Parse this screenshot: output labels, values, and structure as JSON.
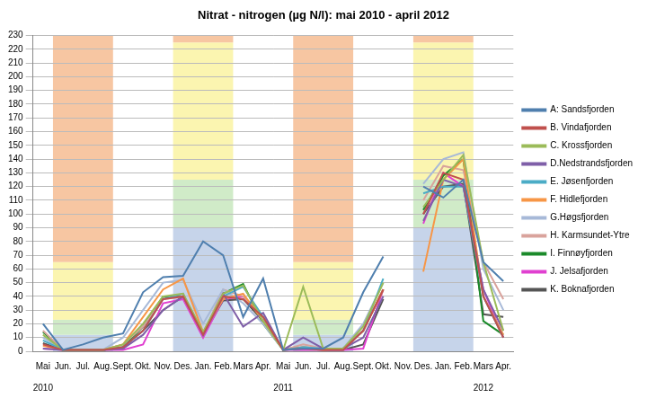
{
  "chart_data": {
    "type": "line",
    "title": "Nitrat - nitrogen (µg N/l): mai 2010 - april 2012",
    "categories": [
      "Mai",
      "Jun.",
      "Jul.",
      "Aug.",
      "Sept.",
      "Okt.",
      "Nov.",
      "Des.",
      "Jan.",
      "Feb.",
      "Mars",
      "Apr.",
      "Mai",
      "Jun.",
      "Jul.",
      "Aug.",
      "Sept.",
      "Okt.",
      "Nov.",
      "Des.",
      "Jan.",
      "Feb.",
      "Mars",
      "Apr."
    ],
    "annotations": [
      {
        "x_index": 0,
        "text": "2010"
      },
      {
        "x_index": 12,
        "text": "2011"
      },
      {
        "x_index": 22,
        "text": "2012"
      }
    ],
    "series": [
      {
        "name": "A: Sandsfjorden",
        "color": "#4f7fae",
        "values": [
          20,
          1,
          5,
          10,
          13,
          43,
          54,
          55,
          80,
          70,
          25,
          53,
          1,
          2,
          2,
          10,
          43,
          69,
          null,
          120,
          112,
          125,
          65,
          51
        ]
      },
      {
        "name": "B. Vindafjorden",
        "color": "#c0504d",
        "values": [
          5,
          1,
          1,
          1,
          3,
          15,
          38,
          40,
          12,
          40,
          38,
          25,
          1,
          2,
          1,
          1,
          15,
          45,
          null,
          100,
          130,
          125,
          40,
          10
        ]
      },
      {
        "name": "C. Krossfjorden",
        "color": "#9bbb59",
        "values": [
          12,
          1,
          1,
          1,
          5,
          20,
          40,
          42,
          14,
          42,
          48,
          22,
          1,
          47,
          2,
          2,
          18,
          50,
          null,
          105,
          125,
          143,
          65,
          15
        ]
      },
      {
        "name": "D.Nedstrandsfjorden",
        "color": "#7f5fa8",
        "values": [
          2,
          1,
          1,
          1,
          2,
          12,
          30,
          40,
          12,
          42,
          18,
          28,
          1,
          10,
          2,
          2,
          10,
          40,
          null,
          95,
          125,
          120,
          45,
          15
        ]
      },
      {
        "name": "E. Jøsenfjorden",
        "color": "#4bacc6",
        "values": [
          8,
          1,
          1,
          1,
          3,
          15,
          38,
          42,
          12,
          40,
          47,
          25,
          1,
          3,
          2,
          2,
          15,
          53,
          null,
          115,
          120,
          120,
          40,
          10
        ]
      },
      {
        "name": "F. Hidlefjorden",
        "color": "#f79646",
        "values": [
          4,
          1,
          1,
          1,
          5,
          25,
          45,
          53,
          14,
          38,
          42,
          22,
          1,
          3,
          1,
          2,
          15,
          45,
          null,
          58,
          125,
          140,
          40,
          12
        ]
      },
      {
        "name": "G.Høgsfjorden",
        "color": "#a7b9d8",
        "values": [
          10,
          1,
          1,
          1,
          10,
          30,
          50,
          52,
          20,
          45,
          35,
          20,
          1,
          3,
          2,
          2,
          20,
          50,
          null,
          122,
          140,
          145,
          60,
          30
        ]
      },
      {
        "name": "H. Karmsundet-Ytre",
        "color": "#d9a39c",
        "values": [
          15,
          1,
          1,
          1,
          5,
          18,
          38,
          40,
          12,
          45,
          40,
          25,
          1,
          5,
          2,
          2,
          15,
          45,
          null,
          110,
          135,
          132,
          65,
          38
        ]
      },
      {
        "name": "I. Finnøyfjorden",
        "color": "#1b8a2a",
        "values": [
          14,
          1,
          1,
          1,
          3,
          18,
          40,
          40,
          13,
          42,
          49,
          20,
          1,
          3,
          2,
          2,
          15,
          45,
          null,
          103,
          128,
          140,
          22,
          12
        ]
      },
      {
        "name": "J. Jelsafjorden",
        "color": "#e040d0",
        "values": [
          2,
          1,
          1,
          1,
          1,
          5,
          35,
          38,
          10,
          38,
          40,
          25,
          1,
          1,
          1,
          1,
          2,
          45,
          null,
          93,
          130,
          120,
          45,
          10
        ]
      },
      {
        "name": "K. Boknafjorden",
        "color": "#555555",
        "values": [
          6,
          1,
          1,
          1,
          3,
          15,
          30,
          40,
          12,
          37,
          38,
          22,
          1,
          2,
          1,
          1,
          5,
          38,
          null,
          100,
          120,
          122,
          27,
          25
        ]
      }
    ],
    "bands": [
      {
        "start": 1,
        "end": 3,
        "levels": [
          {
            "from": 0,
            "to": 12,
            "color": "#c6d4ea"
          },
          {
            "from": 12,
            "to": 23,
            "color": "#d0ebc8"
          },
          {
            "from": 23,
            "to": 65,
            "color": "#fbf5b0"
          },
          {
            "from": 65,
            "to": 230,
            "color": "#f7c6a2"
          }
        ]
      },
      {
        "start": 7,
        "end": 9,
        "levels": [
          {
            "from": 0,
            "to": 90,
            "color": "#c6d4ea"
          },
          {
            "from": 90,
            "to": 125,
            "color": "#d0ebc8"
          },
          {
            "from": 125,
            "to": 225,
            "color": "#fbf5b0"
          },
          {
            "from": 225,
            "to": 230,
            "color": "#f7c6a2"
          }
        ]
      },
      {
        "start": 13,
        "end": 15,
        "levels": [
          {
            "from": 0,
            "to": 12,
            "color": "#c6d4ea"
          },
          {
            "from": 12,
            "to": 23,
            "color": "#d0ebc8"
          },
          {
            "from": 23,
            "to": 65,
            "color": "#fbf5b0"
          },
          {
            "from": 65,
            "to": 230,
            "color": "#f7c6a2"
          }
        ]
      },
      {
        "start": 19,
        "end": 21,
        "levels": [
          {
            "from": 0,
            "to": 90,
            "color": "#c6d4ea"
          },
          {
            "from": 90,
            "to": 125,
            "color": "#d0ebc8"
          },
          {
            "from": 125,
            "to": 225,
            "color": "#fbf5b0"
          },
          {
            "from": 225,
            "to": 230,
            "color": "#f7c6a2"
          }
        ]
      }
    ],
    "ylim": [
      0,
      230
    ],
    "yticks": [
      0,
      10,
      20,
      30,
      40,
      50,
      60,
      70,
      80,
      90,
      100,
      110,
      120,
      130,
      140,
      150,
      160,
      170,
      180,
      190,
      200,
      210,
      220,
      230
    ],
    "grid": true,
    "legend": "right"
  }
}
